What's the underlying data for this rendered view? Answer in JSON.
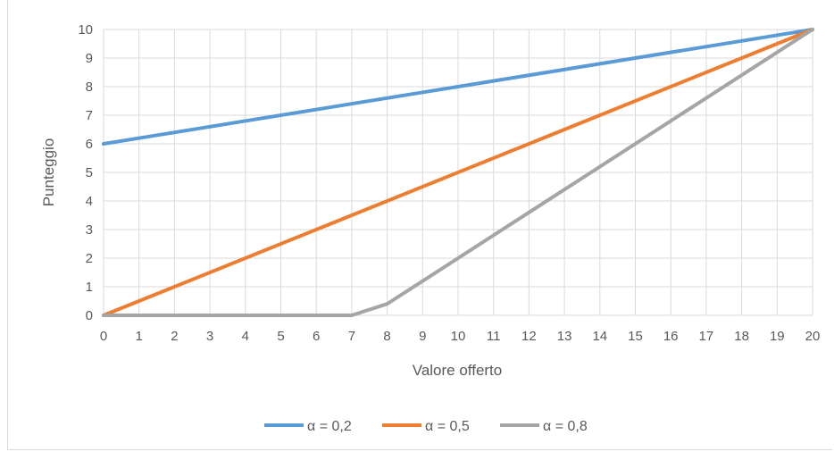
{
  "chart_data": {
    "type": "line",
    "xlabel": "Valore offerto",
    "ylabel": "Punteggio",
    "xlim": [
      0,
      20
    ],
    "ylim": [
      0,
      10
    ],
    "x_ticks": [
      "0",
      "1",
      "2",
      "3",
      "4",
      "5",
      "6",
      "7",
      "8",
      "9",
      "10",
      "11",
      "12",
      "13",
      "14",
      "15",
      "16",
      "17",
      "18",
      "19",
      "20"
    ],
    "y_ticks": [
      "0",
      "1",
      "2",
      "3",
      "4",
      "5",
      "6",
      "7",
      "8",
      "9",
      "10"
    ],
    "grid": true,
    "legend_position": "bottom",
    "series": [
      {
        "name": "α = 0,2",
        "color": "#5b9bd5",
        "x": [
          0,
          20
        ],
        "y": [
          6,
          10
        ]
      },
      {
        "name": "α = 0,5",
        "color": "#ed7d31",
        "x": [
          0,
          20
        ],
        "y": [
          0,
          10
        ]
      },
      {
        "name": "α = 0,8",
        "color": "#a5a5a5",
        "x": [
          0,
          7,
          8,
          20
        ],
        "y": [
          0,
          0,
          0.4,
          10
        ]
      }
    ]
  }
}
